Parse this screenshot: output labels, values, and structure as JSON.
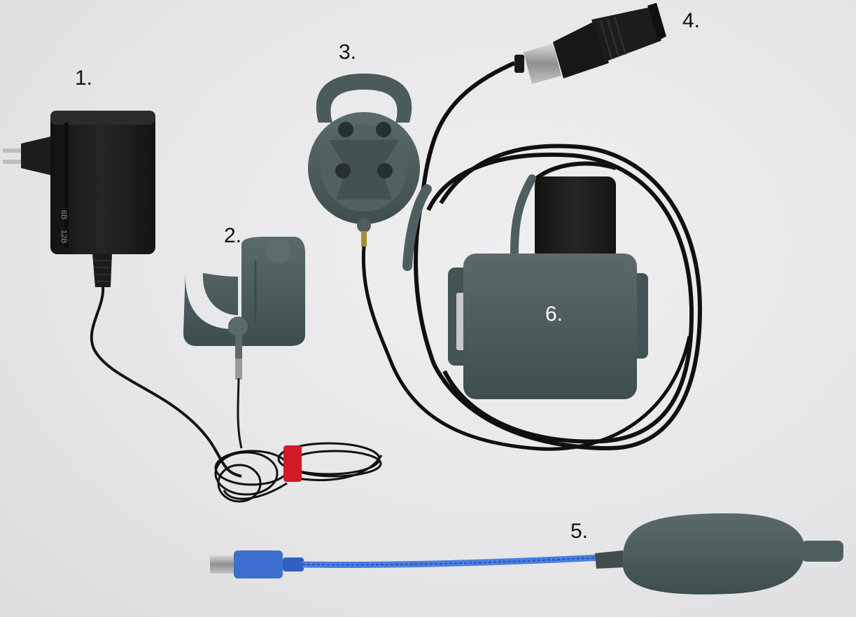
{
  "labels": [
    {
      "id": "1",
      "text": "1."
    },
    {
      "id": "2",
      "text": "2."
    },
    {
      "id": "3",
      "text": "3."
    },
    {
      "id": "4",
      "text": "4."
    },
    {
      "id": "5",
      "text": "5."
    },
    {
      "id": "6",
      "text": "6."
    }
  ],
  "adapter_markings": {
    "a": "6B",
    "b": "12B"
  },
  "colors": {
    "background": "#e9e9ea",
    "device_grey": "#4f5f60",
    "adapter_black": "#1a1a1b",
    "cable_black": "#111111",
    "usb_blue": "#3c6fd0",
    "velcro_red": "#d01a24"
  }
}
